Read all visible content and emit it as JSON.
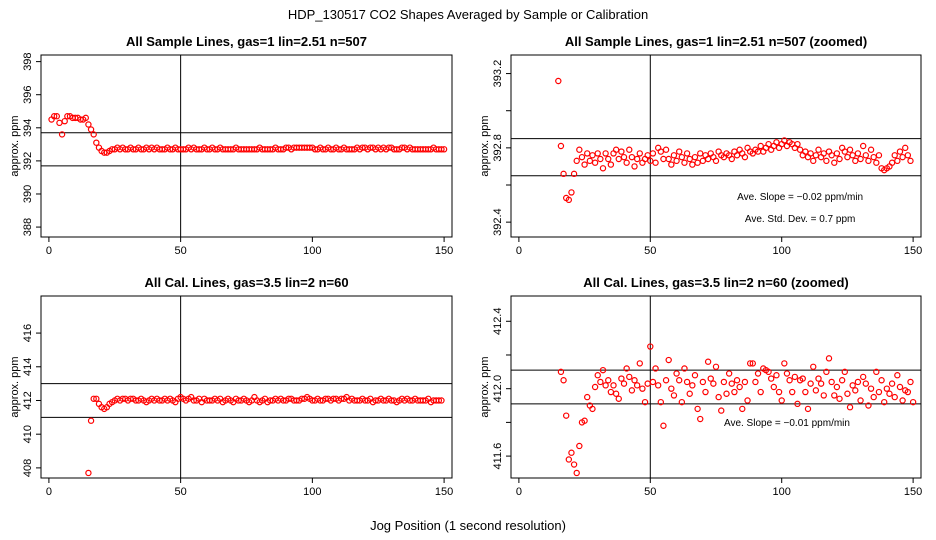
{
  "main_title": "HDP_130517  CO2 Shapes Averaged by Sample or Calibration",
  "x_axis_label": "Jog Position (1 second resolution)",
  "colors": {
    "points": "#ff0000",
    "lines": "#000000"
  },
  "chart_data": [
    {
      "type": "scatter",
      "title": "All Sample Lines, gas=1 lin=2.51 n=507",
      "ylabel": "approx. ppm",
      "xlim": [
        -3,
        153
      ],
      "ylim": [
        387.4,
        398.4
      ],
      "xticks": [
        0,
        50,
        100,
        150
      ],
      "xtick_labels": [
        "0",
        "50",
        "100",
        "150"
      ],
      "yticks": [
        388,
        390,
        392,
        394,
        396,
        398
      ],
      "ytick_labels": [
        "388",
        "390",
        "392",
        "394",
        "396",
        "398"
      ],
      "hlines": [
        391.7,
        393.7
      ],
      "vline": 50,
      "annotations": [],
      "x_start": 1,
      "y": [
        394.5,
        394.7,
        394.7,
        394.3,
        393.6,
        394.4,
        394.7,
        394.7,
        394.6,
        394.6,
        394.6,
        394.5,
        394.5,
        394.6,
        394.2,
        393.9,
        393.6,
        393.1,
        392.8,
        392.6,
        392.5,
        392.5,
        392.6,
        392.7,
        392.7,
        392.8,
        392.7,
        392.8,
        392.7,
        392.7,
        392.8,
        392.7,
        392.7,
        392.8,
        392.7,
        392.7,
        392.8,
        392.7,
        392.8,
        392.7,
        392.8,
        392.7,
        392.7,
        392.7,
        392.8,
        392.7,
        392.7,
        392.8,
        392.7,
        392.7,
        392.7,
        392.7,
        392.8,
        392.7,
        392.8,
        392.7,
        392.7,
        392.7,
        392.8,
        392.7,
        392.7,
        392.8,
        392.7,
        392.7,
        392.8,
        392.7,
        392.7,
        392.7,
        392.7,
        392.7,
        392.8,
        392.7,
        392.7,
        392.7,
        392.7,
        392.7,
        392.7,
        392.7,
        392.7,
        392.8,
        392.7,
        392.7,
        392.7,
        392.7,
        392.7,
        392.8,
        392.7,
        392.7,
        392.7,
        392.8,
        392.8,
        392.7,
        392.8,
        392.8,
        392.8,
        392.8,
        392.8,
        392.8,
        392.8,
        392.8,
        392.7,
        392.7,
        392.8,
        392.7,
        392.7,
        392.8,
        392.7,
        392.7,
        392.8,
        392.7,
        392.7,
        392.8,
        392.7,
        392.7,
        392.7,
        392.7,
        392.8,
        392.7,
        392.8,
        392.8,
        392.7,
        392.8,
        392.8,
        392.7,
        392.8,
        392.7,
        392.8,
        392.7,
        392.8,
        392.8,
        392.7,
        392.7,
        392.7,
        392.8,
        392.8,
        392.7,
        392.8,
        392.7,
        392.7,
        392.7,
        392.7,
        392.7,
        392.7,
        392.7,
        392.7,
        392.8,
        392.7,
        392.7,
        392.7,
        392.7
      ]
    },
    {
      "type": "scatter",
      "title": "All Sample Lines, gas=1 lin=2.51 n=507 (zoomed)",
      "ylabel": "approx. ppm",
      "xlim": [
        -3,
        153
      ],
      "ylim": [
        392.32,
        393.3
      ],
      "xticks": [
        0,
        50,
        100,
        150
      ],
      "xtick_labels": [
        "0",
        "50",
        "100",
        "150"
      ],
      "yticks": [
        392.4,
        392.6,
        392.8,
        393.0,
        393.2
      ],
      "ytick_labels": [
        "392.4",
        "",
        "392.8",
        "",
        "393.2"
      ],
      "hlines": [
        392.65,
        392.85
      ],
      "vline": 50,
      "annotations": [
        {
          "text": "Ave. Slope =  −0.02  ppm/min",
          "x": 107,
          "y": 392.52
        },
        {
          "text": "Ave. Std. Dev. =  0.7  ppm",
          "x": 107,
          "y": 392.4
        }
      ],
      "x_start": 15,
      "y": [
        393.16,
        392.81,
        392.66,
        392.53,
        392.52,
        392.56,
        392.66,
        392.73,
        392.79,
        392.75,
        392.71,
        392.77,
        392.73,
        392.76,
        392.72,
        392.77,
        392.74,
        392.69,
        392.77,
        392.74,
        392.71,
        392.77,
        392.79,
        392.74,
        392.78,
        392.75,
        392.72,
        392.79,
        392.75,
        392.7,
        392.74,
        392.77,
        392.72,
        392.74,
        392.76,
        392.73,
        392.77,
        392.72,
        392.8,
        392.78,
        392.74,
        392.79,
        392.74,
        392.71,
        392.76,
        392.73,
        392.78,
        392.75,
        392.72,
        392.77,
        392.74,
        392.71,
        392.75,
        392.72,
        392.77,
        392.73,
        392.76,
        392.74,
        392.77,
        392.75,
        392.73,
        392.78,
        392.76,
        392.75,
        392.77,
        392.76,
        392.74,
        392.78,
        392.76,
        392.79,
        392.77,
        392.75,
        392.8,
        392.78,
        392.77,
        392.79,
        392.78,
        392.81,
        392.78,
        392.8,
        392.82,
        392.79,
        392.81,
        392.83,
        392.8,
        392.82,
        392.84,
        392.81,
        392.83,
        392.82,
        392.8,
        392.82,
        392.79,
        392.76,
        392.78,
        392.75,
        392.77,
        392.73,
        392.76,
        392.79,
        392.75,
        392.77,
        392.73,
        392.78,
        392.76,
        392.72,
        392.77,
        392.74,
        392.8,
        392.78,
        392.75,
        392.79,
        392.76,
        392.73,
        392.77,
        392.74,
        392.81,
        392.76,
        392.73,
        392.79,
        392.75,
        392.72,
        392.76,
        392.69,
        392.68,
        392.69,
        392.7,
        392.72,
        392.76,
        392.73,
        392.78,
        392.75,
        392.8,
        392.76,
        392.73
      ]
    },
    {
      "type": "scatter",
      "title": "All Cal. Lines, gas=3.5 lin=2 n=60",
      "ylabel": "approx. ppm",
      "xlim": [
        -3,
        153
      ],
      "ylim": [
        407.4,
        418.2
      ],
      "xticks": [
        0,
        50,
        100,
        150
      ],
      "xtick_labels": [
        "0",
        "50",
        "100",
        "150"
      ],
      "yticks": [
        408,
        410,
        412,
        414,
        416
      ],
      "ytick_labels": [
        "408",
        "410",
        "412",
        "414",
        "416"
      ],
      "hlines": [
        411,
        413
      ],
      "vline": 50,
      "annotations": [],
      "x_start": 15,
      "y": [
        407.7,
        410.8,
        412.1,
        412.1,
        411.8,
        411.6,
        411.5,
        411.6,
        411.8,
        411.9,
        412,
        412.1,
        412,
        412.1,
        412.1,
        412,
        412.1,
        412.1,
        412,
        412,
        412.1,
        412,
        411.9,
        412,
        412.1,
        412,
        412.1,
        412,
        412,
        412.1,
        412,
        412.1,
        412,
        411.9,
        412.1,
        412.2,
        412.1,
        412,
        412.1,
        412.2,
        412,
        412,
        412.1,
        411.9,
        412.1,
        412,
        412,
        412,
        412.1,
        412,
        412.1,
        411.9,
        412,
        412.1,
        412,
        411.9,
        412.1,
        412,
        412,
        412.1,
        412,
        411.9,
        412,
        412.2,
        412,
        411.9,
        412,
        412.1,
        411.9,
        412,
        412,
        412.1,
        412,
        412.1,
        412,
        412,
        412.1,
        412.1,
        412,
        412,
        412,
        412.1,
        412.1,
        412.2,
        412.1,
        412,
        412,
        412.1,
        412,
        412,
        412.1,
        412.1,
        412,
        412.1,
        412.1,
        412,
        412.1,
        412.1,
        412.2,
        412,
        412.1,
        412,
        412,
        412,
        412.1,
        412,
        412,
        412.1,
        411.9,
        412,
        412,
        412.1,
        412,
        412,
        412.1,
        412,
        412,
        411.9,
        412,
        412.1,
        412,
        412.1,
        412,
        412,
        412.1,
        412,
        412,
        412,
        412,
        412.1,
        411.9,
        412,
        412,
        412,
        412
      ]
    },
    {
      "type": "scatter",
      "title": "All Cal. Lines, gas=3.5 lin=2 n=60 (zoomed)",
      "ylabel": "approx. ppm",
      "xlim": [
        -3,
        153
      ],
      "ylim": [
        411.47,
        412.55
      ],
      "xticks": [
        0,
        50,
        100,
        150
      ],
      "xtick_labels": [
        "0",
        "50",
        "100",
        "150"
      ],
      "yticks": [
        411.6,
        411.8,
        412.0,
        412.2,
        412.4
      ],
      "ytick_labels": [
        "411.6",
        "",
        "412.0",
        "",
        "412.4"
      ],
      "hlines": [
        411.91,
        412.11
      ],
      "vline": 50,
      "annotations": [
        {
          "text": "Ave. Slope =  −0.01  ppm/min",
          "x": 102,
          "y": 411.78
        }
      ],
      "x_start": 16,
      "y": [
        412.1,
        412.05,
        411.84,
        411.58,
        411.62,
        411.55,
        411.5,
        411.66,
        411.8,
        411.81,
        411.95,
        411.9,
        411.88,
        412.01,
        412.08,
        412.04,
        412.11,
        412.02,
        412.05,
        411.98,
        412.02,
        411.97,
        411.94,
        412.06,
        412.03,
        412.12,
        412.07,
        411.99,
        412.05,
        412.02,
        412.15,
        412,
        411.92,
        412.03,
        412.25,
        412.04,
        412.12,
        412.02,
        411.92,
        411.78,
        412.05,
        412.17,
        412,
        411.96,
        412.09,
        412.05,
        411.92,
        412.12,
        412.04,
        411.97,
        412.02,
        412.08,
        411.88,
        411.82,
        412.04,
        411.98,
        412.16,
        412.06,
        412.03,
        412.13,
        411.95,
        411.87,
        412.04,
        411.97,
        412.09,
        412.03,
        411.98,
        412.05,
        412.01,
        411.88,
        412.04,
        411.93,
        412.15,
        412.15,
        412.04,
        412.09,
        411.98,
        412.12,
        412.11,
        412.1,
        412.06,
        412.01,
        412.08,
        411.98,
        411.93,
        412.15,
        412.09,
        412.05,
        411.98,
        412.07,
        411.91,
        412.05,
        412.06,
        411.98,
        411.88,
        412.03,
        412.13,
        411.99,
        412.06,
        412.03,
        411.96,
        412.1,
        412.18,
        412.04,
        411.96,
        412.01,
        411.94,
        412.05,
        412.1,
        411.97,
        411.89,
        412.02,
        411.99,
        412.04,
        411.93,
        412.07,
        412.03,
        411.9,
        412,
        411.95,
        412.1,
        411.98,
        412.05,
        411.92,
        412,
        411.97,
        412.03,
        411.95,
        412.08,
        412.01,
        411.93,
        411.99,
        411.98,
        412.04,
        411.92
      ]
    }
  ]
}
